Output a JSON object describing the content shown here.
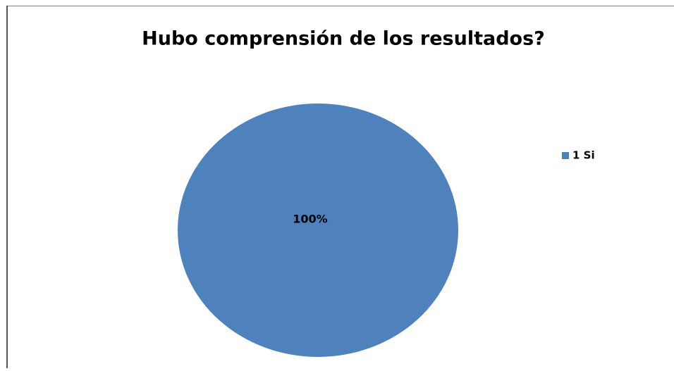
{
  "chart_data": {
    "type": "pie",
    "title": "Hubo comprensión de los resultados?",
    "categories": [
      "1 Si"
    ],
    "values": [
      100
    ],
    "value_labels": [
      "100%"
    ],
    "colors": [
      "#4f81bd"
    ],
    "legend": "right"
  }
}
